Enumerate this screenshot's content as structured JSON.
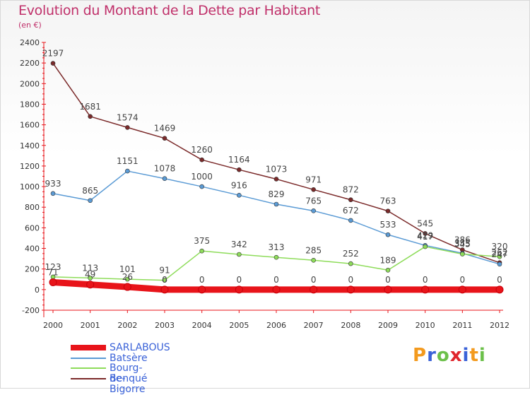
{
  "title": "Evolution du Montant de la Dette par Habitant",
  "unit": "(en €)",
  "logo": {
    "text": "Proxiti",
    "letters": [
      "P",
      "r",
      "o",
      "x",
      "i",
      "t",
      "i"
    ],
    "colors": [
      "#f39a1e",
      "#3a62d8",
      "#6cc04a",
      "#e0262d",
      "#3a62d8",
      "#f39a1e",
      "#6cc04a"
    ]
  },
  "chart_data": {
    "type": "line",
    "title": "Evolution du Montant de la Dette par Habitant",
    "ylabel": "(en €)",
    "xlabel": "",
    "x": [
      "2000",
      "2001",
      "2002",
      "2003",
      "2004",
      "2005",
      "2006",
      "2007",
      "2008",
      "2009",
      "2010",
      "2011",
      "2012"
    ],
    "ylim": [
      -200,
      2400
    ],
    "yticks": [
      -200,
      0,
      200,
      400,
      600,
      800,
      1000,
      1200,
      1400,
      1600,
      1800,
      2000,
      2200,
      2400
    ],
    "grid": false,
    "legend_position": "bottom-left",
    "series": [
      {
        "name": "SARLABOUS",
        "color": "#e8141a",
        "width": "thick",
        "values": [
          71,
          49,
          26,
          0,
          0,
          0,
          0,
          0,
          0,
          0,
          0,
          0,
          0
        ],
        "labels": [
          "71",
          "49",
          "26",
          "0",
          "0",
          "0",
          "0",
          "0",
          "0",
          "0",
          "0",
          "0",
          "0"
        ]
      },
      {
        "name": "Batsère",
        "color": "#5b9bd5",
        "width": "thin",
        "values": [
          933,
          865,
          1151,
          1078,
          1000,
          916,
          829,
          765,
          672,
          533,
          429,
          353,
          247
        ],
        "labels": [
          "933",
          "865",
          "1151",
          "1078",
          "1000",
          "916",
          "829",
          "765",
          "672",
          "533",
          "429",
          "353",
          "247"
        ]
      },
      {
        "name": "Bourg-de-Bigorre",
        "color": "#8edc5a",
        "width": "thin",
        "values": [
          123,
          113,
          101,
          91,
          375,
          342,
          313,
          285,
          252,
          189,
          417,
          345,
          320
        ],
        "labels": [
          "123",
          "113",
          "101",
          "91",
          "375",
          "342",
          "313",
          "285",
          "252",
          "189",
          "417",
          "345",
          "320"
        ]
      },
      {
        "name": "Benqué",
        "color": "#7b2a2a",
        "width": "thin",
        "values": [
          2197,
          1681,
          1574,
          1469,
          1260,
          1164,
          1073,
          971,
          872,
          763,
          545,
          386,
          262
        ],
        "labels": [
          "2197",
          "1681",
          "1574",
          "1469",
          "1260",
          "1164",
          "1073",
          "971",
          "872",
          "763",
          "545",
          "386",
          "262"
        ]
      }
    ]
  }
}
